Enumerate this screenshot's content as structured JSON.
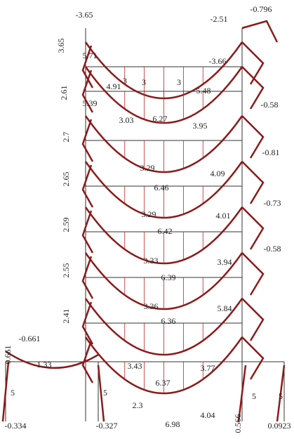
{
  "labels": [
    "-3.65",
    "-2.51",
    "-0.796",
    "3.65",
    "5.71",
    "3",
    "3",
    "3",
    "4.91",
    "5.48",
    "-3.66",
    "2.61",
    "5.39",
    "3.03",
    "3.95",
    "6.27",
    "2.7",
    "3.29",
    "4.09",
    "6.46",
    "2.65",
    "3.29",
    "4.01",
    "6.42",
    "2.59",
    "3.33",
    "3.94",
    "6.39",
    "2.55",
    "3.36",
    "5.84",
    "6.36",
    "2.41",
    "3.43",
    "3.77",
    "6.37",
    "2.3",
    "4.04",
    "6.98",
    "1.33",
    "0.661",
    "-0.661",
    "5",
    "5",
    "5",
    "5",
    "-0.58",
    "-0.81",
    "-0.73",
    "-0.58",
    "-0.334",
    "-0.327",
    "0.566",
    "0.0923"
  ]
}
